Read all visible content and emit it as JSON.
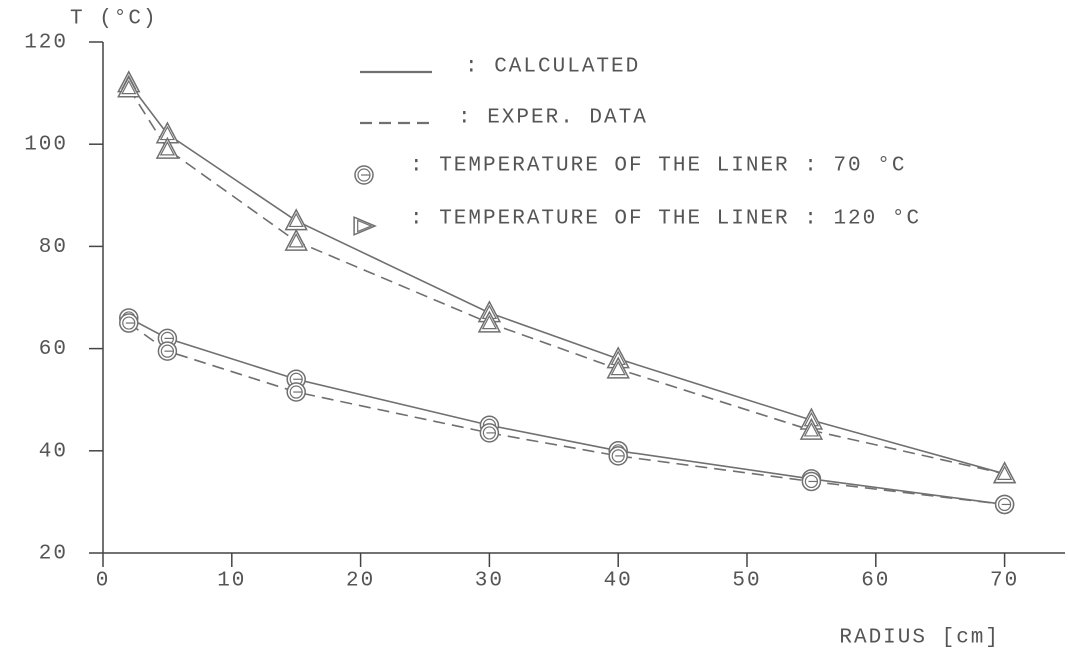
{
  "chart_data": {
    "type": "line",
    "y_label": "T (°C)",
    "x_label": "RADIUS [cm]",
    "xlim": [
      0,
      75
    ],
    "xticks": [
      0,
      10,
      20,
      30,
      40,
      50,
      60,
      70
    ],
    "ylim": [
      20,
      120
    ],
    "yticks": [
      20,
      40,
      60,
      80,
      100,
      120
    ],
    "color": "#707070",
    "legend": [
      {
        "label": ": CALCULATED",
        "style": "solid"
      },
      {
        "label": ": EXPER. DATA",
        "style": "dashed"
      },
      {
        "label": ": TEMPERATURE OF THE LINER : 70 °C",
        "marker": "circle"
      },
      {
        "label": ": TEMPERATURE OF THE LINER : 120 °C",
        "marker": "triangle"
      }
    ],
    "x": [
      2,
      5,
      15,
      30,
      40,
      55,
      70
    ],
    "series": [
      {
        "style": "solid",
        "marker": "triangle",
        "values": [
          112,
          102,
          85,
          67,
          58,
          46,
          35.5
        ]
      },
      {
        "style": "dashed",
        "marker": "triangle",
        "values": [
          111,
          99,
          81,
          65,
          56,
          44,
          35.5
        ]
      },
      {
        "style": "solid",
        "marker": "circle",
        "values": [
          66,
          62,
          54,
          45,
          40,
          34.5,
          29.5
        ]
      },
      {
        "style": "dashed",
        "marker": "circle",
        "values": [
          65,
          59.5,
          51.5,
          43.5,
          39,
          34,
          29.5
        ]
      }
    ]
  }
}
